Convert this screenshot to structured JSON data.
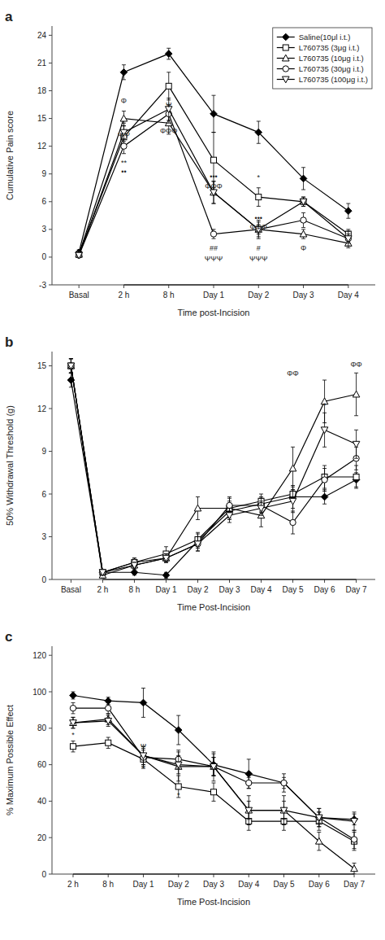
{
  "chart_data": [
    {
      "type": "line",
      "title": "a",
      "x_label": "Time post-Incision",
      "y_label": "Cumulative Pain score",
      "categories": [
        "Basal",
        "2 h",
        "8 h",
        "Day 1",
        "Day 2",
        "Day 3",
        "Day 4"
      ],
      "ylim": [
        -3,
        25
      ],
      "yticks": [
        -3,
        0,
        3,
        6,
        9,
        12,
        15,
        18,
        21,
        24
      ],
      "grid": false,
      "legend": "upper right",
      "series": [
        {
          "name": "Saline(10μl i.t.)",
          "color": "black",
          "marker": "diamond",
          "values": [
            0.5,
            20.0,
            22.0,
            15.5,
            13.5,
            8.5,
            5.0
          ],
          "errors": [
            0.3,
            0.8,
            0.6,
            2.0,
            1.2,
            1.2,
            0.8
          ]
        },
        {
          "name": "L760735 (3μg i.t.)",
          "color": "black",
          "marker": "square-open",
          "values": [
            0.3,
            13.0,
            18.5,
            10.5,
            6.5,
            6.0,
            2.5
          ],
          "errors": [
            0.2,
            1.2,
            1.5,
            3.0,
            1.0,
            0.5,
            0.5
          ]
        },
        {
          "name": "L760735 (10μg i.t.)",
          "color": "black",
          "marker": "triangle-up-open",
          "values": [
            0.3,
            15.0,
            14.5,
            7.0,
            3.0,
            2.5,
            1.5
          ],
          "errors": [
            0.2,
            0.8,
            1.2,
            1.2,
            0.8,
            0.5,
            0.5
          ]
        },
        {
          "name": "L760735 (30μg i.t.)",
          "color": "black",
          "marker": "circle-open",
          "values": [
            0.2,
            12.0,
            15.5,
            2.5,
            3.0,
            4.0,
            2.0
          ],
          "errors": [
            0.2,
            0.8,
            1.0,
            0.5,
            1.0,
            0.8,
            0.8
          ]
        },
        {
          "name": "L760735 (100μg i.t.)",
          "color": "black",
          "marker": "triangle-down-open",
          "values": [
            0.2,
            13.5,
            16.0,
            7.0,
            3.0,
            6.0,
            2.0
          ],
          "errors": [
            0.2,
            1.0,
            1.2,
            1.2,
            0.5,
            0.5,
            0.5
          ]
        }
      ],
      "annotations": [
        {
          "text": "Φ",
          "x": "2 h",
          "y": 16.5
        },
        {
          "text": "ΨΨ",
          "x": "2 h",
          "y": 12.8
        },
        {
          "text": "**",
          "x": "2 h",
          "y": 9.8
        },
        {
          "text": "••",
          "x": "2 h",
          "y": 8.8
        },
        {
          "text": "ΦΦΦ",
          "x": "8 h",
          "y": 13.2
        },
        {
          "text": "Ψ",
          "x": "8 h",
          "y": 16.0
        },
        {
          "text": "•••",
          "x": "Day 1",
          "y": 8.3
        },
        {
          "text": "ΦΦΦ",
          "x": "Day 1",
          "y": 7.2
        },
        {
          "text": "##",
          "x": "Day 1",
          "y": 0.5
        },
        {
          "text": "ΨΨΨ",
          "x": "Day 1",
          "y": -0.6
        },
        {
          "text": "*",
          "x": "Day 2",
          "y": 8.2
        },
        {
          "text": "•••",
          "x": "Day 2",
          "y": 3.8
        },
        {
          "text": "ΦΦΦ",
          "x": "Day 2",
          "y": 2.8
        },
        {
          "text": "#",
          "x": "Day 2",
          "y": 0.5
        },
        {
          "text": "ΨΨΨ",
          "x": "Day 2",
          "y": -0.6
        },
        {
          "text": "Φ",
          "x": "Day 3",
          "y": 0.5
        }
      ],
      "spans": [
        {
          "x0": "2 h",
          "x1": "Day 4",
          "y": -3
        }
      ]
    },
    {
      "type": "line",
      "title": "b",
      "x_label": "Time Post-Incision",
      "y_label": "50% Withdrawal Threshold (g)",
      "categories": [
        "Basal",
        "2 h",
        "8 h",
        "Day 1",
        "Day 2",
        "Day 3",
        "Day 4",
        "Day 5",
        "Day 6",
        "Day 7"
      ],
      "ylim": [
        0,
        16
      ],
      "yticks": [
        0,
        3,
        6,
        9,
        12,
        15
      ],
      "grid": false,
      "series": [
        {
          "color": "black",
          "marker": "diamond",
          "values": [
            14.0,
            0.5,
            0.5,
            0.3,
            2.7,
            4.8,
            5.3,
            5.8,
            5.8,
            7.0
          ],
          "errors": [
            0.5,
            0.2,
            0.2,
            0.2,
            0.5,
            0.5,
            0.5,
            0.8,
            0.5,
            0.5
          ]
        },
        {
          "color": "black",
          "marker": "square-open",
          "values": [
            15.0,
            0.5,
            1.2,
            1.8,
            2.8,
            5.0,
            5.5,
            6.0,
            7.2,
            7.2
          ],
          "errors": [
            0.5,
            0.2,
            0.3,
            0.5,
            0.5,
            0.5,
            0.5,
            0.5,
            0.8,
            0.8
          ]
        },
        {
          "color": "black",
          "marker": "triangle-up-open",
          "values": [
            15.0,
            0.3,
            1.0,
            1.5,
            5.0,
            5.0,
            4.5,
            7.8,
            12.5,
            13.0
          ],
          "errors": [
            0.5,
            0.2,
            0.2,
            0.3,
            0.8,
            0.8,
            0.8,
            1.5,
            1.5,
            1.5
          ]
        },
        {
          "color": "black",
          "marker": "circle-open",
          "values": [
            15.0,
            0.5,
            1.2,
            1.5,
            2.5,
            5.2,
            5.2,
            4.0,
            7.0,
            8.5
          ],
          "errors": [
            0.5,
            0.2,
            0.3,
            0.3,
            0.5,
            0.5,
            0.5,
            0.8,
            0.8,
            0.8
          ]
        },
        {
          "color": "black",
          "marker": "triangle-down-open",
          "values": [
            15.0,
            0.5,
            1.0,
            1.5,
            2.5,
            4.5,
            5.0,
            5.5,
            10.5,
            9.5
          ],
          "errors": [
            0.5,
            0.2,
            0.2,
            0.3,
            0.5,
            0.5,
            0.5,
            0.8,
            1.2,
            1.0
          ]
        }
      ],
      "annotations": [
        {
          "text": "ΦΦ",
          "x": "Day 5",
          "y": 14.2
        },
        {
          "text": "ΦΦ",
          "x": "Day 7",
          "y": 14.8
        },
        {
          "text": "•",
          "x": "Day 6",
          "y": 12.0
        }
      ],
      "spans": [
        {
          "x0": "2 h",
          "x1": "Day 7",
          "y": 0
        }
      ]
    },
    {
      "type": "line",
      "title": "c",
      "x_label": "Time Post-Incision",
      "y_label": "% Maximum Possible Effect",
      "categories": [
        "2 h",
        "8 h",
        "Day 1",
        "Day 2",
        "Day 3",
        "Day 4",
        "Day 5",
        "Day 6",
        "Day 7"
      ],
      "ylim": [
        0,
        125
      ],
      "yticks": [
        0,
        20,
        40,
        60,
        80,
        100,
        120
      ],
      "grid": false,
      "series": [
        {
          "color": "black",
          "marker": "diamond",
          "values": [
            98.0,
            95.0,
            94.0,
            79.0,
            60.0,
            55.0,
            50.0,
            31.0,
            30.0
          ],
          "errors": [
            2.0,
            2.0,
            8.0,
            8.0,
            6.0,
            8.0,
            5.0,
            5.0,
            3.0
          ]
        },
        {
          "color": "black",
          "marker": "square-open",
          "values": [
            70.0,
            72.0,
            63.0,
            48.0,
            45.0,
            29.0,
            29.0,
            29.0,
            18.0
          ],
          "errors": [
            3.0,
            3.0,
            5.0,
            6.0,
            5.0,
            5.0,
            5.0,
            5.0,
            5.0
          ]
        },
        {
          "color": "black",
          "marker": "triangle-up-open",
          "values": [
            83.0,
            85.0,
            65.0,
            59.0,
            59.0,
            35.0,
            35.0,
            18.0,
            3.0
          ],
          "errors": [
            3.0,
            3.0,
            5.0,
            8.0,
            8.0,
            8.0,
            8.0,
            5.0,
            3.0
          ]
        },
        {
          "color": "black",
          "marker": "circle-open",
          "values": [
            91.0,
            91.0,
            64.0,
            63.0,
            59.0,
            50.0,
            50.0,
            31.0,
            19.0
          ],
          "errors": [
            3.0,
            3.0,
            5.0,
            5.0,
            5.0,
            3.0,
            3.0,
            3.0,
            5.0
          ]
        },
        {
          "color": "black",
          "marker": "triangle-down-open",
          "values": [
            83.0,
            84.0,
            65.0,
            60.0,
            59.0,
            35.0,
            35.0,
            31.0,
            29.0
          ],
          "errors": [
            3.0,
            3.0,
            5.0,
            5.0,
            5.0,
            5.0,
            5.0,
            5.0,
            5.0
          ]
        }
      ],
      "annotations": [
        {
          "text": "*",
          "x": "2 h",
          "y": 74.0
        },
        {
          "text": "Ψ",
          "x": "Day 1",
          "y": 68.0
        },
        {
          "text": "*",
          "x": "Day 1",
          "y": 56.0
        },
        {
          "text": "*",
          "x": "Day 2",
          "y": 41.0
        }
      ],
      "spans": [
        {
          "x0": "2 h",
          "x1": "Day 7",
          "y": 0
        }
      ]
    }
  ]
}
